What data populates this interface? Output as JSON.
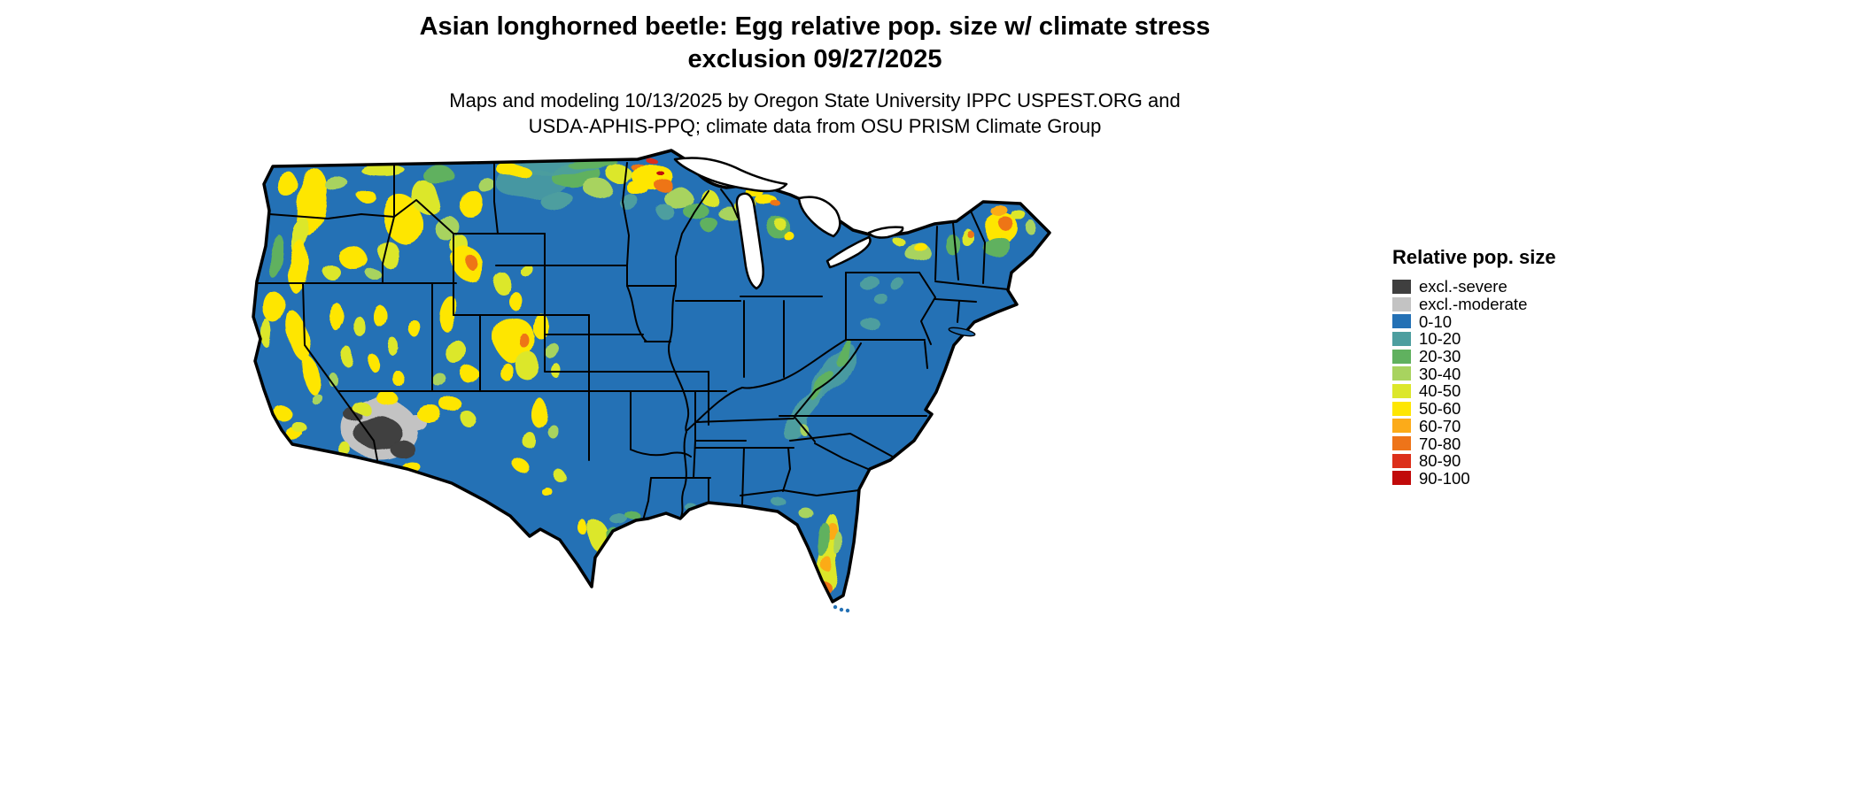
{
  "header": {
    "title_line1": "Asian longhorned beetle: Egg relative pop. size w/ climate stress",
    "title_line2": "exclusion 09/27/2025",
    "subtitle_line1": "Maps and modeling 10/13/2025 by Oregon State University IPPC USPEST.ORG and",
    "subtitle_line2": "USDA-APHIS-PPQ; climate data from OSU PRISM Climate Group"
  },
  "legend": {
    "title": "Relative pop. size",
    "items": [
      {
        "key": "excl-severe",
        "label": "excl.-severe",
        "color": "#3f3f3f"
      },
      {
        "key": "excl-moderate",
        "label": "excl.-moderate",
        "color": "#c3c3c3"
      },
      {
        "key": "v0-10",
        "label": "0-10",
        "color": "#2471b5"
      },
      {
        "key": "v10-20",
        "label": "10-20",
        "color": "#4d9e9f"
      },
      {
        "key": "v20-30",
        "label": "20-30",
        "color": "#60b15f"
      },
      {
        "key": "v30-40",
        "label": "30-40",
        "color": "#a8d35f"
      },
      {
        "key": "v40-50",
        "label": "40-50",
        "color": "#dce72b"
      },
      {
        "key": "v50-60",
        "label": "50-60",
        "color": "#fee602"
      },
      {
        "key": "v60-70",
        "label": "60-70",
        "color": "#fcab19"
      },
      {
        "key": "v70-80",
        "label": "70-80",
        "color": "#ee7419"
      },
      {
        "key": "v80-90",
        "label": "80-90",
        "color": "#dc2f1a"
      },
      {
        "key": "v90-100",
        "label": "90-100",
        "color": "#c10a0a"
      }
    ]
  },
  "map": {
    "region_depicted": "Continental United States (CONUS)",
    "base_class": "0-10",
    "background": "#ffffff",
    "border_color": "#000000"
  }
}
